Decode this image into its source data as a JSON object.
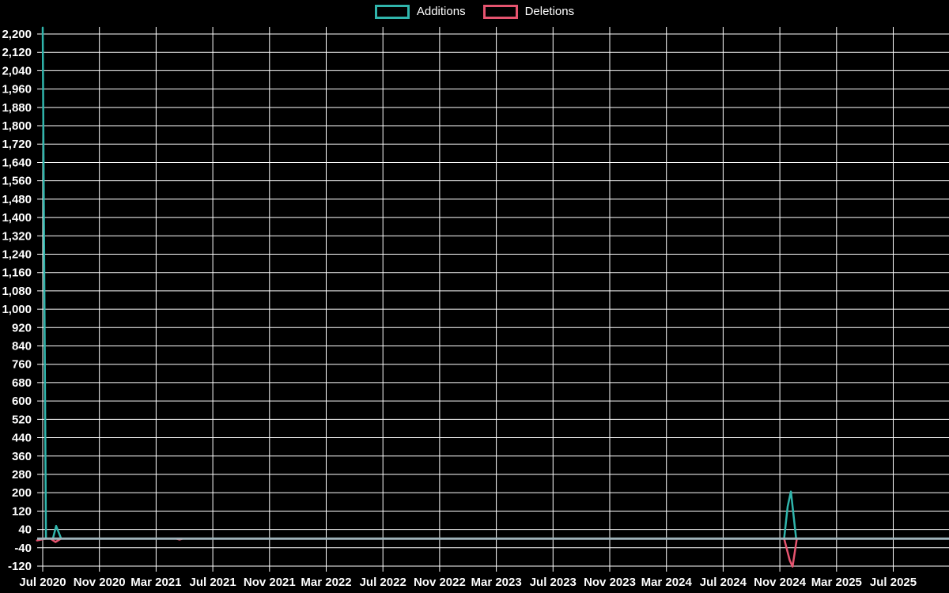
{
  "page": {
    "background": "#000000",
    "text_color": "#ffffff"
  },
  "legend": {
    "items": [
      {
        "label": "Additions",
        "color": "#30b5ac"
      },
      {
        "label": "Deletions",
        "color": "#e6546f"
      }
    ]
  },
  "chart_data": {
    "type": "line",
    "title": "",
    "xlabel": "",
    "ylabel": "",
    "x_axis": {
      "unit": "months since Jul 2020",
      "tick_labels": [
        "Jul 2020",
        "Nov 2020",
        "Mar 2021",
        "Jul 2021",
        "Nov 2021",
        "Mar 2022",
        "Jul 2022",
        "Nov 2022",
        "Mar 2023",
        "Jul 2023",
        "Nov 2023",
        "Mar 2024",
        "Jul 2024",
        "Nov 2024",
        "Mar 2025",
        "Jul 2025"
      ],
      "tick_month_indices": [
        0,
        4,
        8,
        12,
        16,
        20,
        24,
        28,
        32,
        36,
        40,
        44,
        48,
        52,
        56,
        60
      ],
      "months_shown": 63.9
    },
    "y_axis": {
      "min": -120,
      "max": 2200,
      "tick_step": 80,
      "number_format": "en-US thousands comma"
    },
    "grid": true,
    "grid_color": "#ffffff",
    "zero_line_color": "#9fb3ba",
    "legend_position": "top-center",
    "series": [
      {
        "name": "Deletions",
        "color": "#e6546f",
        "points": [
          [
            -0.4,
            -8
          ],
          [
            0.25,
            0
          ],
          [
            0.55,
            0
          ],
          [
            0.9,
            -15
          ],
          [
            1.3,
            0
          ],
          [
            9.4,
            0
          ],
          [
            9.65,
            -4
          ],
          [
            9.9,
            0
          ],
          [
            52.3,
            0
          ],
          [
            52.7,
            -95
          ],
          [
            52.9,
            -122
          ],
          [
            53.2,
            0
          ],
          [
            63.9,
            0
          ]
        ]
      },
      {
        "name": "Additions",
        "color": "#30b5ac",
        "points": [
          [
            0,
            2228
          ],
          [
            0.23,
            0
          ],
          [
            0.72,
            0
          ],
          [
            0.95,
            55
          ],
          [
            1.3,
            0
          ],
          [
            52.3,
            0
          ],
          [
            52.55,
            140
          ],
          [
            52.78,
            205
          ],
          [
            53.15,
            0
          ],
          [
            63.9,
            0
          ]
        ]
      }
    ]
  }
}
